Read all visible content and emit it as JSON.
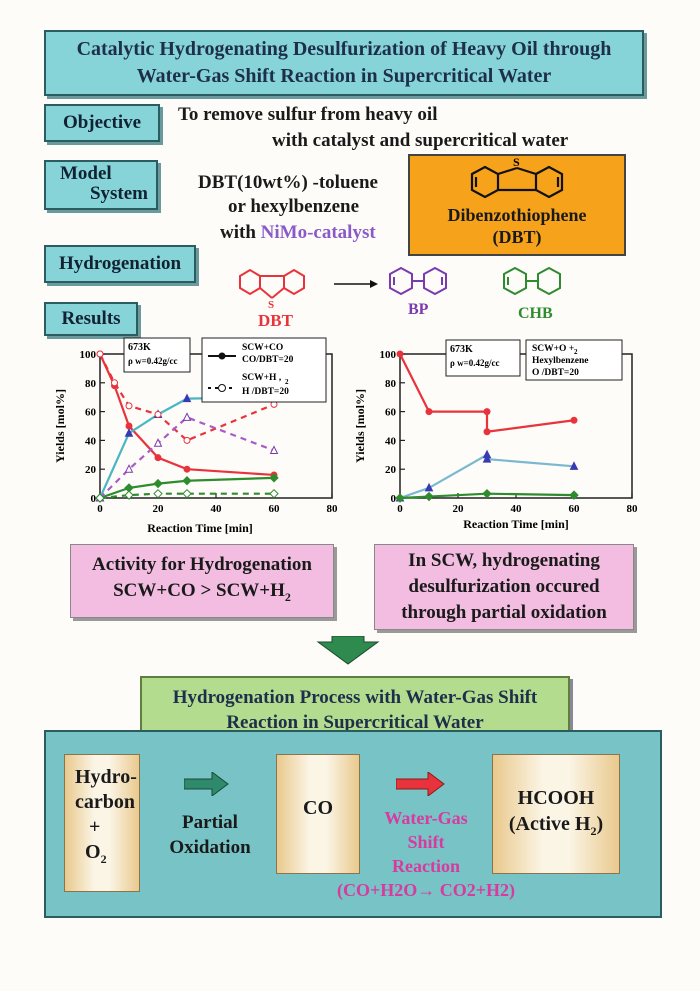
{
  "title": {
    "line1": "Catalytic Hydrogenating Desulfurization of Heavy Oil through",
    "line2": "Water-Gas Shift Reaction in Supercritical Water"
  },
  "objective": {
    "label": "Objective",
    "line1": "To remove sulfur from heavy oil",
    "line2": "with catalyst and supercritical water"
  },
  "model": {
    "label_line1": "Model",
    "label_line2": "System",
    "line1": "DBT(10wt%) -toluene",
    "line2": "or  hexylbenzene",
    "line3_prefix": "with ",
    "line3_catalyst": "NiMo-catalyst"
  },
  "dbt_box": {
    "line1": "Dibenzothiophene",
    "line2": "(DBT)",
    "atom": "S"
  },
  "hydrogenation": {
    "label": "Hydrogenation",
    "dbt": "DBT",
    "bp": "BP",
    "chb": "CHB",
    "atom": "S"
  },
  "results": {
    "label": "Results"
  },
  "chart_left": {
    "ylabel": "Yields [mol%]",
    "xlabel": "Reaction Time [min]",
    "xticks": [
      "0",
      "20",
      "40",
      "60",
      "80"
    ],
    "yticks": [
      "0",
      "20",
      "40",
      "60",
      "80",
      "100"
    ],
    "cond1": "673K",
    "cond2": "ρ w=0.42g/cc",
    "leg1_a": "SCW+CO",
    "leg1_b": "CO/DBT=20",
    "leg2_a": "SCW+H ,",
    "leg2_b": "H /DBT=20",
    "leg_sub": "2"
  },
  "chart_right": {
    "ylabel": "Yields [mol%]",
    "xlabel": "Reaction Time  [min]",
    "xticks": [
      "0",
      "20",
      "40",
      "60",
      "80"
    ],
    "yticks": [
      "0",
      "20",
      "40",
      "60",
      "80",
      "100"
    ],
    "cond1": "673K",
    "cond2": "ρ w=0.42g/cc",
    "leg_a": "SCW+O +",
    "leg_b": "Hexylbenzene",
    "leg_c": "O /DBT=20",
    "leg_sub": "2"
  },
  "chart_data": [
    {
      "type": "line",
      "xlabel": "Reaction Time [min]",
      "ylabel": "Yields [mol%]",
      "xlim": [
        0,
        80
      ],
      "ylim": [
        0,
        100
      ],
      "series": [
        {
          "name": "DBT SCW+CO",
          "color": "#e8333c",
          "x": [
            0,
            5,
            10,
            20,
            30,
            60
          ],
          "y": [
            100,
            78,
            50,
            28,
            20,
            16
          ]
        },
        {
          "name": "BP SCW+CO",
          "color": "#3a3ab0",
          "x": [
            0,
            10,
            20,
            30,
            60
          ],
          "y": [
            0,
            45,
            58,
            69,
            70
          ]
        },
        {
          "name": "CHB SCW+CO",
          "color": "#2e8b2e",
          "x": [
            0,
            10,
            20,
            30,
            60
          ],
          "y": [
            0,
            7,
            10,
            12,
            14
          ]
        },
        {
          "name": "DBT SCW+H2",
          "color": "#e8333c",
          "x": [
            0,
            5,
            10,
            20,
            30,
            60
          ],
          "y": [
            100,
            80,
            64,
            58,
            40,
            65
          ]
        },
        {
          "name": "BP SCW+H2",
          "color": "#7a3ab0",
          "x": [
            0,
            10,
            20,
            30,
            60
          ],
          "y": [
            0,
            20,
            38,
            56,
            33
          ]
        },
        {
          "name": "CHB SCW+H2",
          "color": "#2e8b2e",
          "x": [
            0,
            10,
            20,
            30,
            60
          ],
          "y": [
            0,
            2,
            3,
            3,
            3
          ]
        }
      ]
    },
    {
      "type": "line",
      "xlabel": "Reaction Time  [min]",
      "ylabel": "Yields [mol%]",
      "xlim": [
        0,
        80
      ],
      "ylim": [
        0,
        100
      ],
      "series": [
        {
          "name": "DBT",
          "color": "#e8333c",
          "x": [
            0,
            10,
            30,
            30,
            60
          ],
          "y": [
            100,
            60,
            60,
            46,
            54
          ]
        },
        {
          "name": "BP",
          "color": "#3a3ab0",
          "x": [
            0,
            10,
            30,
            30,
            60
          ],
          "y": [
            0,
            7,
            30,
            27,
            22
          ]
        },
        {
          "name": "CHB",
          "color": "#2e8b2e",
          "x": [
            0,
            10,
            30,
            60
          ],
          "y": [
            0,
            1,
            3,
            2
          ]
        }
      ]
    }
  ],
  "conclusion_left": {
    "line1": "Activity for Hydrogenation",
    "line2": "SCW+CO  >  SCW+H",
    "sub": "2"
  },
  "conclusion_right": {
    "line1": "In SCW, hydrogenating",
    "line2": "desulfurization occured",
    "line3": "through partial oxidation"
  },
  "process": {
    "title_line1": "Hydrogenation Process with Water-Gas Shift",
    "title_line2": "Reaction in Supercritical Water",
    "card1": {
      "line1": "Hydro-",
      "line2": "carbon",
      "line3": "+",
      "line4": "O",
      "sub": "2"
    },
    "step1": {
      "line1": "Partial",
      "line2": "Oxidation"
    },
    "card2": {
      "text": "CO"
    },
    "step2": {
      "line1": "Water-Gas",
      "line2": "Shift",
      "line3": "Reaction"
    },
    "equation": "(CO+H2O→ CO2+H2)",
    "card3": {
      "line1": "HCOOH",
      "line2": "(Active H",
      "line2_sub": "2",
      "line2_end": ")"
    }
  },
  "colors": {
    "teal": "#86d4d8",
    "orange": "#f6a21a",
    "pink": "#f2bde0",
    "green": "#b4dc8e",
    "red": "#e8333c",
    "purple": "#7a3ab0",
    "arrow_green": "#2e8a6a",
    "arrow_red": "#e8333c",
    "magenta_text": "#d83aa0"
  }
}
